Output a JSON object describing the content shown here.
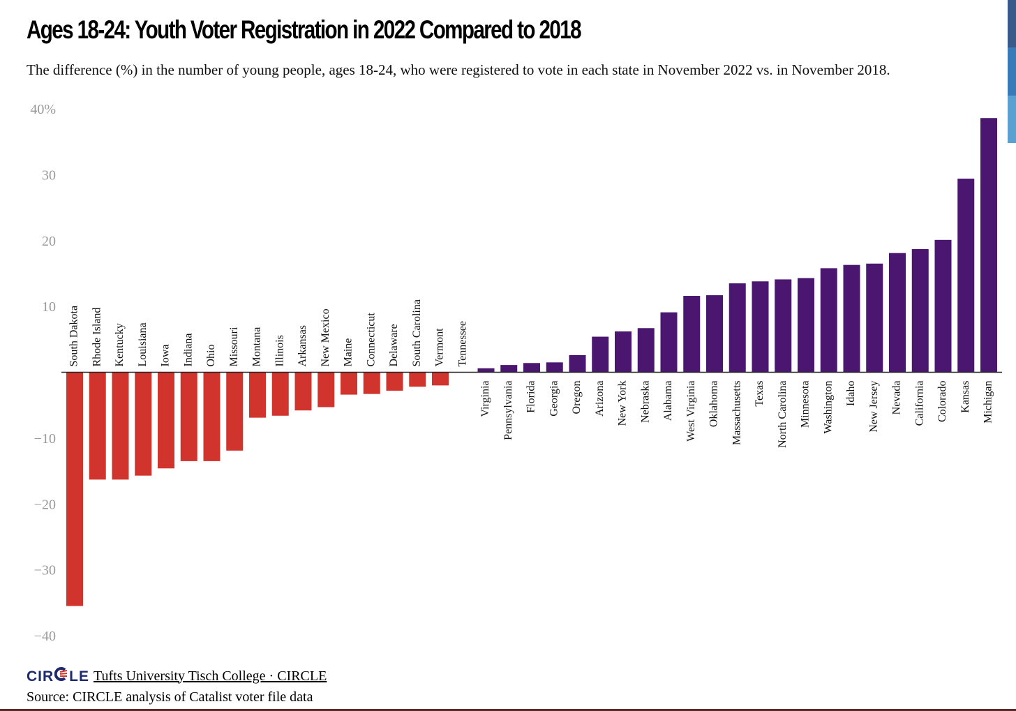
{
  "title": "Ages 18-24: Youth Voter Registration in 2022 Compared to 2018",
  "subtitle": "The difference (%) in the number of young people, ages 18-24, who were registered to vote in each state in November 2022 vs. in November 2018.",
  "footer": {
    "logo_text_1": "CIR",
    "logo_text_2": "LE",
    "credit_link": "Tufts University Tisch College · CIRCLE",
    "source": "Source: CIRCLE analysis of Catalist voter file data"
  },
  "colors": {
    "negative": "#d0342c",
    "positive": "#4a1670",
    "axis_text": "#999999",
    "logo_navy": "#1e2a6e",
    "logo_red": "#d0342c",
    "strip": [
      "#3a5a8a",
      "#3a7ab8",
      "#5aa0d0"
    ]
  },
  "chart_data": {
    "type": "bar",
    "ylim": [
      -40,
      40
    ],
    "yticks": [
      40,
      30,
      20,
      10,
      -10,
      -20,
      -30,
      -40
    ],
    "ytick_labels": [
      "40%",
      "30",
      "20",
      "10",
      "−10",
      "−20",
      "−30",
      "−40"
    ],
    "grid": false,
    "categories": [
      "South Dakota",
      "Rhode Island",
      "Kentucky",
      "Louisiana",
      "Iowa",
      "Indiana",
      "Ohio",
      "Missouri",
      "Montana",
      "Illinois",
      "Arkansas",
      "New Mexico",
      "Maine",
      "Connecticut",
      "Delaware",
      "South Carolina",
      "Vermont",
      "Tennessee",
      "Virginia",
      "Pennsylvania",
      "Florida",
      "Georgia",
      "Oregon",
      "Arizona",
      "New York",
      "Nebraska",
      "Alabama",
      "West Virginia",
      "Oklahoma",
      "Massachusetts",
      "Texas",
      "North Carolina",
      "Minnesota",
      "Washington",
      "Idaho",
      "New Jersey",
      "Nevada",
      "California",
      "Colorado",
      "Kansas",
      "Michigan"
    ],
    "values": [
      -35.5,
      -16.3,
      -16.3,
      -15.7,
      -14.6,
      -13.5,
      -13.5,
      -11.9,
      -6.9,
      -6.6,
      -5.8,
      -5.3,
      -3.4,
      -3.3,
      -2.8,
      -2.2,
      -2.0,
      0.0,
      0.6,
      1.1,
      1.4,
      1.5,
      2.6,
      5.4,
      6.2,
      6.7,
      9.1,
      11.6,
      11.7,
      13.5,
      13.8,
      14.1,
      14.3,
      15.8,
      16.3,
      16.5,
      18.1,
      18.7,
      20.1,
      29.4,
      38.6
    ]
  }
}
